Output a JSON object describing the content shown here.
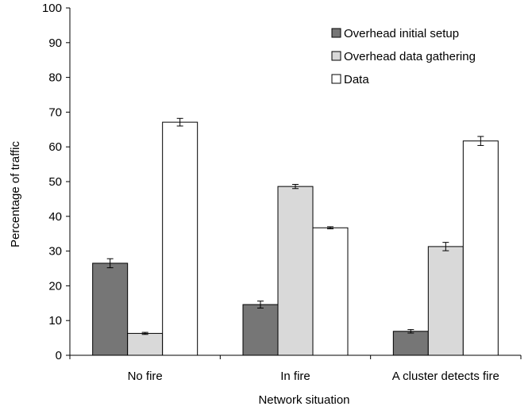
{
  "chart_data": {
    "type": "bar",
    "title": "",
    "xlabel": "Network  situation",
    "ylabel": "Percentage of traffic",
    "ylim": [
      0,
      100
    ],
    "yticks": [
      0,
      10,
      20,
      30,
      40,
      50,
      60,
      70,
      80,
      90,
      100
    ],
    "categories": [
      "No fire",
      "In fire",
      "A cluster detects fire"
    ],
    "series": [
      {
        "name": "Overhead initial setup",
        "values": [
          26.5,
          14.6,
          6.9
        ],
        "errors": [
          1.3,
          1.0,
          0.5
        ],
        "color": "#767676"
      },
      {
        "name": "Overhead data gathering",
        "values": [
          6.3,
          48.6,
          31.3
        ],
        "errors": [
          0.3,
          0.6,
          1.2
        ],
        "color": "#d9d9d9"
      },
      {
        "name": "Data",
        "values": [
          67.1,
          36.7,
          61.7
        ],
        "errors": [
          1.1,
          0.3,
          1.3
        ],
        "color": "#ffffff"
      }
    ],
    "grid": false,
    "legend_position": "top-right"
  }
}
